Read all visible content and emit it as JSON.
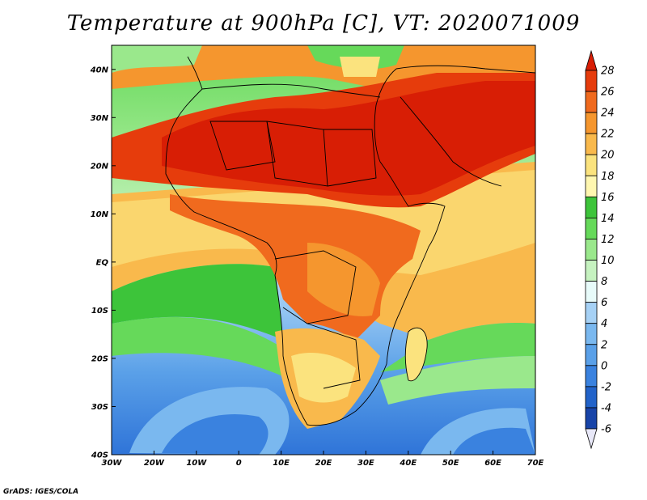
{
  "title": "Temperature at 900hPa [C], VT: 2020071009",
  "credit": "GrADS: IGES/COLA",
  "map": {
    "lon_range": [
      -30,
      75
    ],
    "lat_range": [
      -40,
      45
    ],
    "lon_ticks": [
      "30W",
      "20W",
      "10W",
      "0",
      "10E",
      "20E",
      "30E",
      "40E",
      "50E",
      "60E",
      "70E"
    ],
    "lat_ticks": [
      "40N",
      "30N",
      "20N",
      "10N",
      "EQ",
      "10S",
      "20S",
      "30S",
      "40S"
    ]
  },
  "colorbar": {
    "labels": [
      "28",
      "26",
      "24",
      "22",
      "20",
      "18",
      "16",
      "14",
      "12",
      "10",
      "8",
      "6",
      "4",
      "2",
      "0",
      "-2",
      "-4",
      "-6"
    ],
    "colors": [
      "#d81e05",
      "#e63c0c",
      "#f06a1e",
      "#f5962e",
      "#f9b94c",
      "#fbe37e",
      "#fff7b0",
      "#3dc43a",
      "#66d95a",
      "#9ae88c",
      "#c6f2c0",
      "#e8fbfa",
      "#a6d1f5",
      "#7ab8ef",
      "#5aa0e8",
      "#3a82df",
      "#2263c9",
      "#1844a8",
      "#0c1a7a"
    ]
  }
}
